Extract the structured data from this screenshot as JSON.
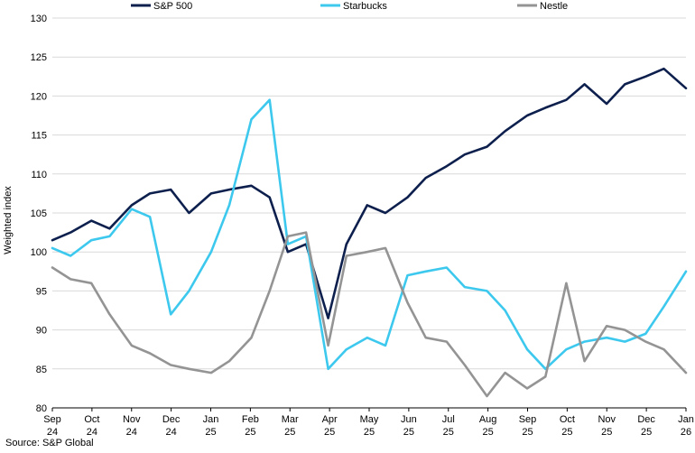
{
  "source_note": "Source: S&P Global",
  "chart_data": {
    "type": "line",
    "ylabel": "Weighted index",
    "ylim": [
      80,
      130
    ],
    "yticks": [
      80,
      85,
      90,
      95,
      100,
      105,
      110,
      115,
      120,
      125,
      130
    ],
    "grid": "horizontal",
    "legend_position": "top",
    "x_labels": [
      {
        "top": "Sep",
        "bottom": "24"
      },
      {
        "top": "Oct",
        "bottom": "24"
      },
      {
        "top": "Nov",
        "bottom": "24"
      },
      {
        "top": "Dec",
        "bottom": "24"
      },
      {
        "top": "Jan",
        "bottom": "25"
      },
      {
        "top": "Feb",
        "bottom": "25"
      },
      {
        "top": "Mar",
        "bottom": "25"
      },
      {
        "top": "Apr",
        "bottom": "25"
      },
      {
        "top": "May",
        "bottom": "25"
      },
      {
        "top": "Jun",
        "bottom": "25"
      },
      {
        "top": "Jul",
        "bottom": "25"
      },
      {
        "top": "Aug",
        "bottom": "25"
      },
      {
        "top": "Sep",
        "bottom": "25"
      },
      {
        "top": "Oct",
        "bottom": "25"
      },
      {
        "top": "Nov",
        "bottom": "25"
      },
      {
        "top": "Dec",
        "bottom": "25"
      },
      {
        "top": "Jan",
        "bottom": "26"
      }
    ],
    "x": [
      "2024-09-01",
      "2024-09-15",
      "2024-10-01",
      "2024-10-15",
      "2024-11-01",
      "2024-11-15",
      "2024-12-01",
      "2024-12-15",
      "2025-01-01",
      "2025-01-15",
      "2025-02-01",
      "2025-02-15",
      "2025-03-01",
      "2025-03-15",
      "2025-04-01",
      "2025-04-15",
      "2025-05-01",
      "2025-05-15",
      "2025-06-01",
      "2025-06-15",
      "2025-07-01",
      "2025-07-15",
      "2025-08-01",
      "2025-08-15",
      "2025-09-01",
      "2025-09-15",
      "2025-10-01",
      "2025-10-15",
      "2025-11-01",
      "2025-11-15",
      "2025-12-01",
      "2025-12-15",
      "2026-01-01"
    ],
    "series": [
      {
        "name": "S&P 500",
        "color": "#0d1f4d",
        "values": [
          101.5,
          102.5,
          104.0,
          103.0,
          106.0,
          107.5,
          108.0,
          105.0,
          107.5,
          108.0,
          108.5,
          107.0,
          100.0,
          101.0,
          91.5,
          101.0,
          106.0,
          105.0,
          107.0,
          109.5,
          111.0,
          112.5,
          113.5,
          115.5,
          117.5,
          118.5,
          119.5,
          121.5,
          119.0,
          121.5,
          122.5,
          123.5,
          121.0
        ]
      },
      {
        "name": "Starbucks",
        "color": "#3dc8ee",
        "values": [
          100.5,
          99.5,
          101.5,
          102.0,
          105.5,
          104.5,
          92.0,
          95.0,
          100.0,
          106.0,
          117.0,
          119.5,
          101.0,
          102.0,
          85.0,
          87.5,
          89.0,
          88.0,
          97.0,
          97.5,
          98.0,
          95.5,
          95.0,
          92.5,
          87.5,
          85.0,
          87.5,
          88.5,
          89.0,
          88.5,
          89.5,
          93.0,
          97.5
        ]
      },
      {
        "name": "Nestle",
        "color": "#949494",
        "values": [
          98.0,
          96.5,
          96.0,
          92.0,
          88.0,
          87.0,
          85.5,
          85.0,
          84.5,
          86.0,
          89.0,
          95.0,
          102.0,
          102.5,
          88.0,
          99.5,
          100.0,
          100.5,
          93.5,
          89.0,
          88.5,
          85.5,
          81.5,
          84.5,
          82.5,
          84.0,
          96.0,
          86.0,
          90.5,
          90.0,
          88.5,
          87.5,
          84.5
        ]
      }
    ]
  }
}
